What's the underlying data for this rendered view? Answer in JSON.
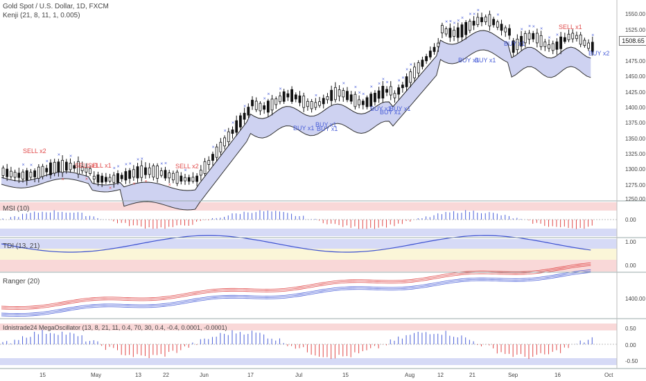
{
  "main_title": "Gold Spot / U.S. Dollar, 1D, FXCM",
  "indicator_title": "Kenji (21, 8, 11, 1, 0.005)",
  "current_price": "1508.65",
  "price_axis": [
    "1550.00",
    "1525.00",
    "1500.00",
    "1475.00",
    "1450.00",
    "1425.00",
    "1400.00",
    "1375.00",
    "1350.00",
    "1325.00",
    "1300.00",
    "1275.00",
    "1250.00"
  ],
  "signals": [
    {
      "text": "SELL x2",
      "color": "#e04848"
    },
    {
      "text": "SELL x1",
      "color": "#e04848"
    },
    {
      "text": "SELL x1",
      "color": "#e04848"
    },
    {
      "text": "SELL x2",
      "color": "#e04848"
    },
    {
      "text": "BUY x1",
      "color": "#4a5fd8"
    },
    {
      "text": "BUY x1",
      "color": "#4a5fd8"
    },
    {
      "text": "BUY x1",
      "color": "#4a5fd8"
    },
    {
      "text": "BUY x1",
      "color": "#4a5fd8"
    },
    {
      "text": "BUY x1",
      "color": "#4a5fd8"
    },
    {
      "text": "BUY x1",
      "color": "#4a5fd8"
    },
    {
      "text": "BUY x1",
      "color": "#4a5fd8"
    },
    {
      "text": "BUY x1",
      "color": "#4a5fd8"
    },
    {
      "text": "BUY x1",
      "color": "#4a5fd8"
    },
    {
      "text": "SELL x1",
      "color": "#e04848"
    },
    {
      "text": "BUY x2",
      "color": "#4a5fd8"
    }
  ],
  "panes": {
    "msi": {
      "title": "MSI (10)",
      "axis": [
        "0.00"
      ]
    },
    "tdi": {
      "title": "TDI (13, 21)",
      "axis": [
        "1.00",
        "0.00"
      ]
    },
    "ranger": {
      "title": "Ranger (20)",
      "axis": [
        "1400.00"
      ]
    },
    "mega": {
      "title": "Idnistrade24 MegaOscillator (13, 8, 21, 11, 0.4, 70, 30, 0.4, -0.4, 0.0001, -0.0001)",
      "axis": [
        "0.50",
        "0.00",
        "-0.50"
      ]
    }
  },
  "date_axis": [
    "15",
    "May",
    "13",
    "22",
    "Jun",
    "17",
    "Jul",
    "15",
    "Aug",
    "12",
    "21",
    "Sep",
    "16",
    "Oct"
  ],
  "colors": {
    "bull": "#ffffff",
    "bear": "#111111",
    "cloud": "#c9cdf0",
    "cloud_green": "#c9ecd0",
    "buy": "#4a5fd8",
    "sell": "#e04848",
    "band_red": "#f9d8d8",
    "band_blue": "#d6daf6",
    "band_yellow": "#fbf6d8"
  }
}
